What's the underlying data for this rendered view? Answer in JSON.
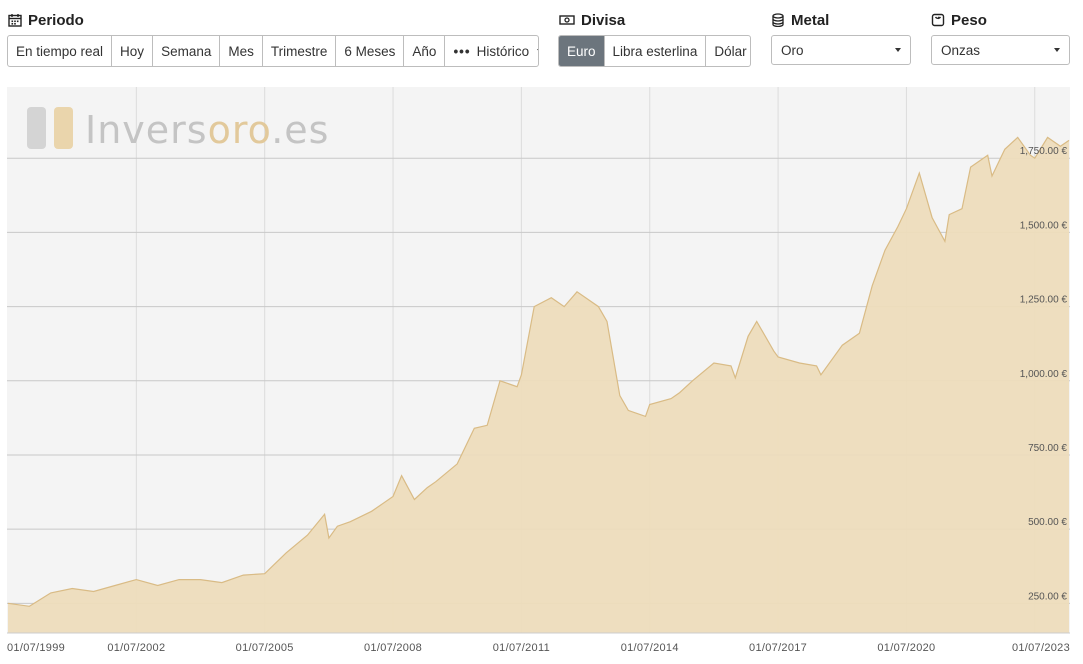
{
  "periodo": {
    "title": "Periodo",
    "icon": "calendar-icon",
    "buttons": [
      "En tiempo real",
      "Hoy",
      "Semana",
      "Mes",
      "Trimestre",
      "6 Meses",
      "Año"
    ],
    "historico_label": "Histórico"
  },
  "divisa": {
    "title": "Divisa",
    "icon": "banknote-icon",
    "buttons": [
      "Euro",
      "Libra esterlina",
      "Dólar"
    ],
    "selected": "Euro"
  },
  "metal": {
    "title": "Metal",
    "icon": "coins-icon",
    "value": "Oro"
  },
  "peso": {
    "title": "Peso",
    "icon": "scale-icon",
    "value": "Onzas"
  },
  "watermark": {
    "part1": "Invers",
    "part2": "oro",
    "part3": ".es"
  },
  "colors": {
    "area_fill": "#eddcbc",
    "area_line": "#d9bb85",
    "active_button": "#6c757d",
    "watermark_gray": "#c4c4c4",
    "watermark_gold": "#e2c99b"
  },
  "chart_data": {
    "type": "area",
    "series": [
      {
        "x": [
          1999.0,
          1999.5,
          2000.0,
          2000.5,
          2001.0,
          2001.5,
          2002.0,
          2002.5,
          2003.0,
          2003.5,
          2004.0,
          2004.5,
          2005.0,
          2005.5,
          2006.0,
          2006.4,
          2006.5,
          2006.7,
          2007.0,
          2007.5,
          2008.0,
          2008.2,
          2008.5,
          2008.8,
          2009.0,
          2009.5,
          2009.9,
          2010.2,
          2010.5,
          2010.9,
          2011.0,
          2011.3,
          2011.7,
          2012.0,
          2012.3,
          2012.8,
          2013.0,
          2013.3,
          2013.5,
          2013.9,
          2014.0,
          2014.5,
          2014.7,
          2015.0,
          2015.5,
          2015.9,
          2016.0,
          2016.3,
          2016.5,
          2016.9,
          2017.0,
          2017.5,
          2017.9,
          2018.0,
          2018.5,
          2018.9,
          2019.2,
          2019.5,
          2019.8,
          2020.0,
          2020.3,
          2020.6,
          2020.9,
          2021.0,
          2021.3,
          2021.5,
          2021.9,
          2022.0,
          2022.3,
          2022.6,
          2022.9,
          2023.0,
          2023.3,
          2023.6,
          2023.8
        ],
        "values": [
          250,
          240,
          285,
          300,
          290,
          310,
          330,
          310,
          330,
          330,
          320,
          345,
          350,
          420,
          480,
          550,
          470,
          510,
          525,
          560,
          610,
          680,
          600,
          640,
          660,
          720,
          840,
          850,
          1000,
          980,
          1020,
          1250,
          1280,
          1250,
          1300,
          1250,
          1200,
          950,
          900,
          880,
          920,
          940,
          960,
          1000,
          1060,
          1050,
          1010,
          1150,
          1200,
          1100,
          1080,
          1060,
          1050,
          1020,
          1120,
          1160,
          1320,
          1440,
          1520,
          1580,
          1700,
          1550,
          1470,
          1560,
          1580,
          1720,
          1760,
          1690,
          1780,
          1820,
          1760,
          1750,
          1820,
          1790,
          1810
        ]
      }
    ],
    "xlabels": [
      "01/07/1999",
      "01/07/2002",
      "01/07/2005",
      "01/07/2008",
      "01/07/2011",
      "01/07/2014",
      "01/07/2017",
      "01/07/2020",
      "01/07/2023"
    ],
    "ylabels": [
      "250.00 €",
      "500.00 €",
      "750.00 €",
      "1,000.00 €",
      "1,250.00 €",
      "1,500.00 €",
      "1,750.00 €"
    ],
    "yticks": [
      250,
      500,
      750,
      1000,
      1250,
      1500,
      1750
    ],
    "ylim": [
      150,
      1990
    ],
    "xlim": [
      1999.0,
      2023.8
    ],
    "xtick_pos": [
      1999.0,
      2002.0,
      2005.0,
      2008.0,
      2011.0,
      2014.0,
      2017.0,
      2020.0,
      2023.0
    ],
    "grid": true
  }
}
